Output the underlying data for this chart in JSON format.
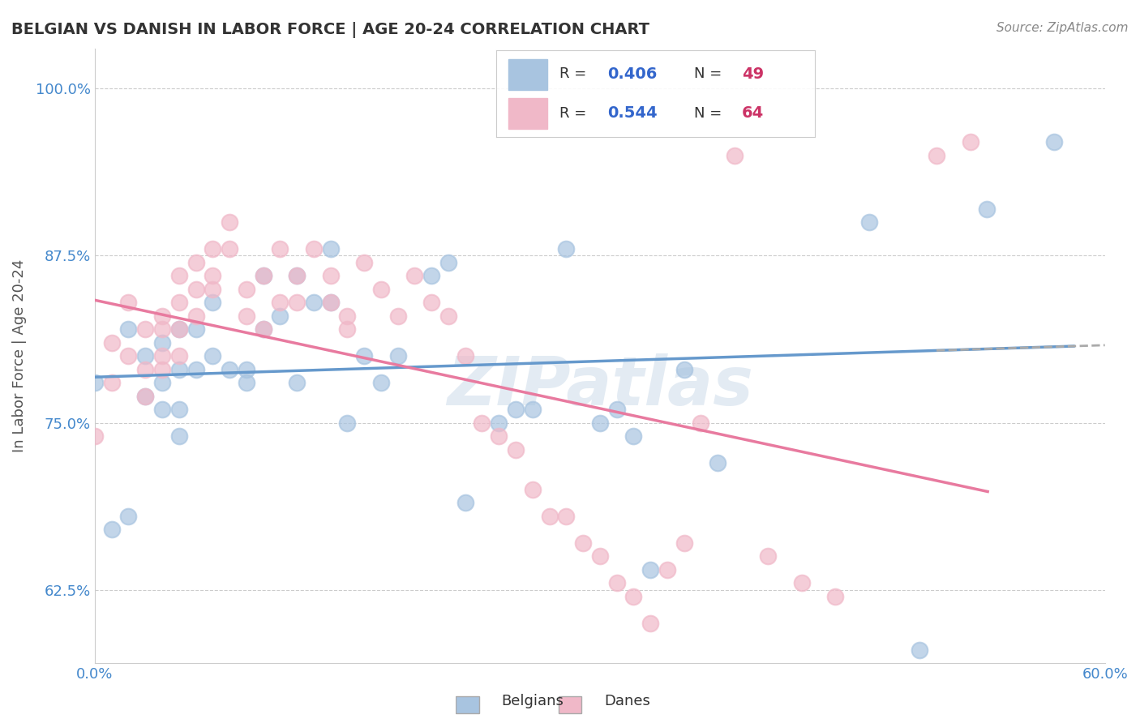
{
  "title": "BELGIAN VS DANISH IN LABOR FORCE | AGE 20-24 CORRELATION CHART",
  "source": "Source: ZipAtlas.com",
  "ylabel": "In Labor Force | Age 20-24",
  "xlabel": "",
  "xlim": [
    0.0,
    0.6
  ],
  "ylim": [
    0.57,
    1.03
  ],
  "yticks": [
    0.625,
    0.75,
    0.875,
    1.0
  ],
  "ytick_labels": [
    "62.5%",
    "75.0%",
    "87.5%",
    "100.0%"
  ],
  "xticks": [
    0.0,
    0.1,
    0.2,
    0.3,
    0.4,
    0.5,
    0.6
  ],
  "xtick_labels": [
    "0.0%",
    "",
    "",
    "",
    "",
    "",
    "60.0%"
  ],
  "belgian_R": 0.406,
  "belgian_N": 49,
  "danish_R": 0.544,
  "danish_N": 64,
  "belgian_color": "#a8c4e0",
  "danish_color": "#f0b8c8",
  "regression_belgian_color": "#6699cc",
  "regression_danish_color": "#e87a9f",
  "background_color": "#ffffff",
  "grid_color": "#cccccc",
  "tick_label_color": "#4488cc",
  "title_color": "#333333",
  "watermark_text": "ZIPatlas",
  "watermark_color": "#c8d8e8",
  "legend_R_color": "#3366cc",
  "legend_N_color": "#cc3366",
  "belgian_x": [
    0.0,
    0.01,
    0.02,
    0.02,
    0.03,
    0.03,
    0.04,
    0.04,
    0.04,
    0.05,
    0.05,
    0.05,
    0.05,
    0.06,
    0.06,
    0.07,
    0.07,
    0.08,
    0.09,
    0.09,
    0.1,
    0.1,
    0.11,
    0.12,
    0.12,
    0.13,
    0.14,
    0.14,
    0.15,
    0.16,
    0.17,
    0.18,
    0.2,
    0.21,
    0.22,
    0.24,
    0.25,
    0.26,
    0.28,
    0.3,
    0.31,
    0.32,
    0.33,
    0.35,
    0.37,
    0.46,
    0.49,
    0.53,
    0.57
  ],
  "belgian_y": [
    0.78,
    0.67,
    0.82,
    0.68,
    0.8,
    0.77,
    0.81,
    0.78,
    0.76,
    0.82,
    0.79,
    0.76,
    0.74,
    0.82,
    0.79,
    0.84,
    0.8,
    0.79,
    0.79,
    0.78,
    0.86,
    0.82,
    0.83,
    0.86,
    0.78,
    0.84,
    0.88,
    0.84,
    0.75,
    0.8,
    0.78,
    0.8,
    0.86,
    0.87,
    0.69,
    0.75,
    0.76,
    0.76,
    0.88,
    0.75,
    0.76,
    0.74,
    0.64,
    0.79,
    0.72,
    0.9,
    0.58,
    0.91,
    0.96
  ],
  "danish_x": [
    0.0,
    0.01,
    0.01,
    0.02,
    0.02,
    0.03,
    0.03,
    0.03,
    0.04,
    0.04,
    0.04,
    0.04,
    0.05,
    0.05,
    0.05,
    0.05,
    0.06,
    0.06,
    0.06,
    0.07,
    0.07,
    0.07,
    0.08,
    0.08,
    0.09,
    0.09,
    0.1,
    0.1,
    0.11,
    0.11,
    0.12,
    0.12,
    0.13,
    0.14,
    0.14,
    0.15,
    0.15,
    0.16,
    0.17,
    0.18,
    0.19,
    0.2,
    0.21,
    0.22,
    0.23,
    0.24,
    0.25,
    0.26,
    0.27,
    0.28,
    0.29,
    0.3,
    0.31,
    0.32,
    0.33,
    0.34,
    0.35,
    0.36,
    0.38,
    0.4,
    0.42,
    0.44,
    0.5,
    0.52
  ],
  "danish_y": [
    0.74,
    0.81,
    0.78,
    0.84,
    0.8,
    0.82,
    0.79,
    0.77,
    0.83,
    0.82,
    0.8,
    0.79,
    0.86,
    0.84,
    0.82,
    0.8,
    0.87,
    0.85,
    0.83,
    0.88,
    0.86,
    0.85,
    0.9,
    0.88,
    0.85,
    0.83,
    0.86,
    0.82,
    0.88,
    0.84,
    0.86,
    0.84,
    0.88,
    0.86,
    0.84,
    0.83,
    0.82,
    0.87,
    0.85,
    0.83,
    0.86,
    0.84,
    0.83,
    0.8,
    0.75,
    0.74,
    0.73,
    0.7,
    0.68,
    0.68,
    0.66,
    0.65,
    0.63,
    0.62,
    0.6,
    0.64,
    0.66,
    0.75,
    0.95,
    0.65,
    0.63,
    0.62,
    0.95,
    0.96
  ]
}
